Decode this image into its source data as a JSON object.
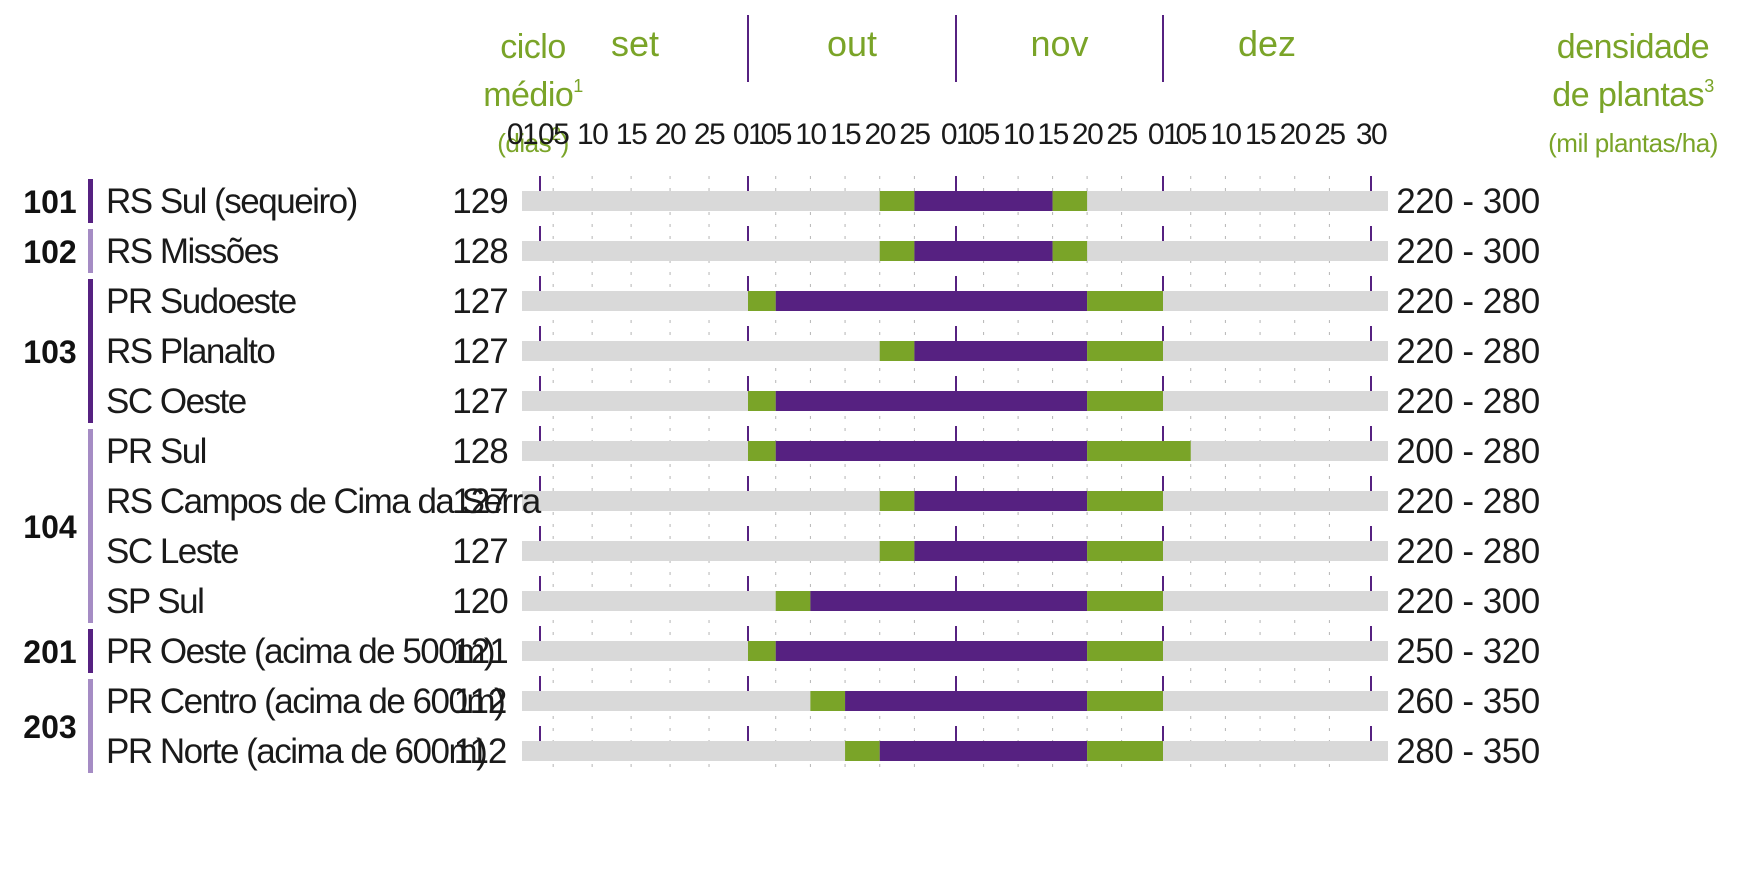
{
  "colors": {
    "purple": "#562181",
    "green": "#7aa428",
    "gray": "#d9d9d9",
    "header_text": "#7aa428",
    "group_bar": "#562181",
    "group_bar_light": "#a58cc4"
  },
  "header": {
    "cycle_line1": "ciclo",
    "cycle_line2": "médio",
    "cycle_line2_sup": "1",
    "cycle_line3": "(dias",
    "cycle_line3_sup": "2",
    "cycle_line3_end": ")",
    "density_line1": "densidade",
    "density_line2": "de plantas",
    "density_line2_sup": "3",
    "density_line3": "(mil plantas/ha)"
  },
  "chart_data": {
    "type": "gantt",
    "months": [
      "set",
      "out",
      "nov",
      "dez"
    ],
    "day_ticks": [
      "01",
      "05",
      "10",
      "15",
      "20",
      "25"
    ],
    "final_tick": "30",
    "legend": "none",
    "groups": [
      {
        "label": "101",
        "shade": "dark",
        "rows": [
          0,
          0
        ]
      },
      {
        "label": "102",
        "shade": "light",
        "rows": [
          1,
          1
        ]
      },
      {
        "label": "103",
        "shade": "dark",
        "rows": [
          2,
          4
        ]
      },
      {
        "label": "104",
        "shade": "light",
        "rows": [
          5,
          8
        ]
      },
      {
        "label": "201",
        "shade": "dark",
        "rows": [
          9,
          9
        ]
      },
      {
        "label": "203",
        "shade": "light",
        "rows": [
          10,
          11
        ]
      }
    ],
    "rows": [
      {
        "region": "RS Sul (sequeiro)",
        "cycle": "129",
        "density": "220 - 300",
        "green_start": "out 20",
        "purple_start": "out 25",
        "purple_end": "nov 15",
        "green_end": "nov 20"
      },
      {
        "region": "RS Missões",
        "cycle": "128",
        "density": "220 - 300",
        "green_start": "out 20",
        "purple_start": "out 25",
        "purple_end": "nov 15",
        "green_end": "nov 20"
      },
      {
        "region": "PR Sudoeste",
        "cycle": "127",
        "density": "220 - 280",
        "green_start": "out 01",
        "purple_start": "out 05",
        "purple_end": "nov 20",
        "green_end": "dez 01"
      },
      {
        "region": "RS Planalto",
        "cycle": "127",
        "density": "220 - 280",
        "green_start": "out 20",
        "purple_start": "out 25",
        "purple_end": "nov 20",
        "green_end": "dez 01"
      },
      {
        "region": "SC Oeste",
        "cycle": "127",
        "density": "220 - 280",
        "green_start": "out 01",
        "purple_start": "out 05",
        "purple_end": "nov 20",
        "green_end": "dez 01"
      },
      {
        "region": "PR Sul",
        "cycle": "128",
        "density": "200 - 280",
        "green_start": "out 01",
        "purple_start": "out 05",
        "purple_end": "nov 20",
        "green_end": "dez 05"
      },
      {
        "region": "RS Campos de Cima da Serra",
        "cycle": "127",
        "density": "220 - 280",
        "green_start": "out 20",
        "purple_start": "out 25",
        "purple_end": "nov 20",
        "green_end": "dez 01"
      },
      {
        "region": "SC Leste",
        "cycle": "127",
        "density": "220 - 280",
        "green_start": "out 20",
        "purple_start": "out 25",
        "purple_end": "nov 20",
        "green_end": "dez 01"
      },
      {
        "region": "SP Sul",
        "cycle": "120",
        "density": "220 - 300",
        "green_start": "out 05",
        "purple_start": "out 10",
        "purple_end": "nov 20",
        "green_end": "dez 01"
      },
      {
        "region": "PR Oeste (acima de 500m)",
        "cycle": "121",
        "density": "250 - 320",
        "green_start": "out 01",
        "purple_start": "out 05",
        "purple_end": "nov 20",
        "green_end": "dez 01"
      },
      {
        "region": "PR Centro (acima de 600m)",
        "cycle": "112",
        "density": "260 - 350",
        "green_start": "out 10",
        "purple_start": "out 15",
        "purple_end": "nov 20",
        "green_end": "dez 01"
      },
      {
        "region": "PR Norte (acima de 600m)",
        "cycle": "112",
        "density": "280 - 350",
        "green_start": "out 15",
        "purple_start": "out 20",
        "purple_end": "nov 20",
        "green_end": "dez 01"
      }
    ]
  }
}
